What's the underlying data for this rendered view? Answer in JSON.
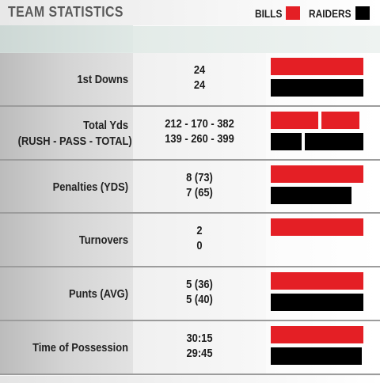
{
  "title": "TEAM STATISTICS",
  "colors": {
    "bills": "#e41f25",
    "raiders": "#000000"
  },
  "legend": [
    {
      "label": "BILLS",
      "color": "#e41f25"
    },
    {
      "label": "RAIDERS",
      "color": "#000000"
    }
  ],
  "chart_data": {
    "type": "bar",
    "title": "TEAM STATISTICS",
    "orientation": "horizontal",
    "series_names": [
      "BILLS",
      "RAIDERS"
    ],
    "rows": [
      {
        "label": "1st Downs",
        "bills_text": "24",
        "raiders_text": "24",
        "bills": [
          24
        ],
        "raiders": [
          24
        ]
      },
      {
        "label": "Total Yds\n(RUSH - PASS - TOTAL)",
        "bills_text": "212 - 170 - 382",
        "raiders_text": "139 - 260 - 399",
        "bills": [
          212,
          170
        ],
        "raiders": [
          139,
          260
        ]
      },
      {
        "label": "Penalties (YDS)",
        "bills_text": "8 (73)",
        "raiders_text": "7 (65)",
        "bills": [
          8
        ],
        "raiders": [
          7
        ]
      },
      {
        "label": "Turnovers",
        "bills_text": "2",
        "raiders_text": "0",
        "bills": [
          2
        ],
        "raiders": [
          0
        ]
      },
      {
        "label": "Punts (AVG)",
        "bills_text": "5 (36)",
        "raiders_text": "5 (40)",
        "bills": [
          5
        ],
        "raiders": [
          5
        ]
      },
      {
        "label": "Time of Possession",
        "bills_text": "30:15",
        "raiders_text": "29:45",
        "bills": [
          30.25
        ],
        "raiders": [
          29.75
        ]
      }
    ]
  }
}
